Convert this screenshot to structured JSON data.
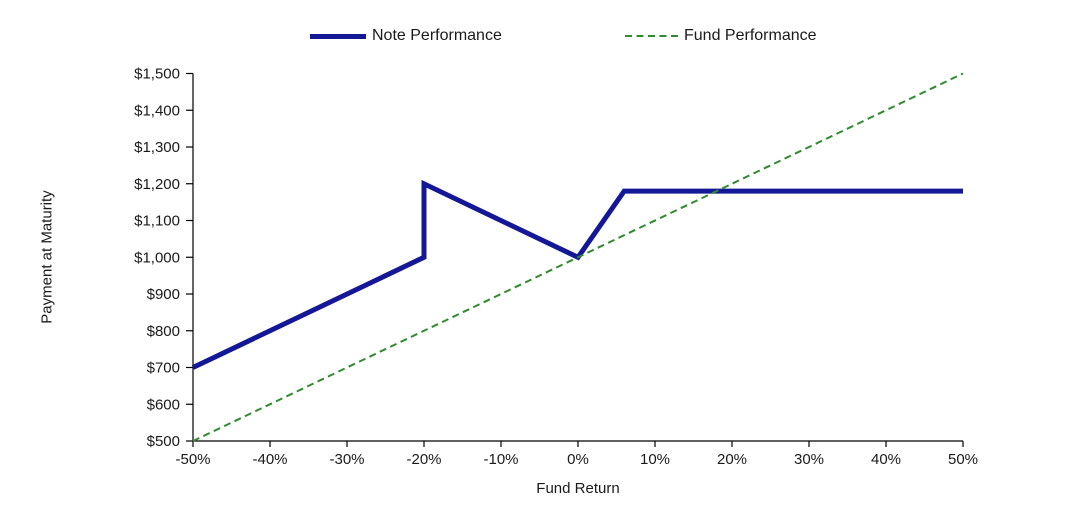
{
  "chart_data": {
    "type": "line",
    "title": "",
    "xlabel": "Fund Return",
    "ylabel": "Payment at Maturity",
    "xlim": [
      -50,
      50
    ],
    "ylim": [
      500,
      1500
    ],
    "x_ticks": [
      -50,
      -40,
      -30,
      -20,
      -10,
      0,
      10,
      20,
      30,
      40,
      50
    ],
    "x_tick_labels": [
      "-50%",
      "-40%",
      "-30%",
      "-20%",
      "-10%",
      "0%",
      "10%",
      "20%",
      "30%",
      "40%",
      "50%"
    ],
    "y_ticks": [
      500,
      600,
      700,
      800,
      900,
      1000,
      1100,
      1200,
      1300,
      1400,
      1500
    ],
    "y_tick_labels": [
      "$500",
      "$600",
      "$700",
      "$800",
      "$900",
      "$1,000",
      "$1,100",
      "$1,200",
      "$1,300",
      "$1,400",
      "$1,500"
    ],
    "grid": false,
    "legend_position": "top",
    "axis_color": "#000000",
    "tick_label_color": "#1a1a1a",
    "series": [
      {
        "name": "Note Performance",
        "color": "#141896",
        "line_style": "solid",
        "line_width": 5,
        "points": [
          [
            -50,
            700
          ],
          [
            -20,
            1000
          ],
          [
            -20,
            1200
          ],
          [
            0,
            1000
          ],
          [
            6,
            1180
          ],
          [
            50,
            1180
          ]
        ]
      },
      {
        "name": "Fund Performance",
        "color": "#2E8B2E",
        "line_style": "dashed",
        "line_width": 2,
        "points": [
          [
            -50,
            500
          ],
          [
            50,
            1500
          ]
        ]
      }
    ]
  }
}
